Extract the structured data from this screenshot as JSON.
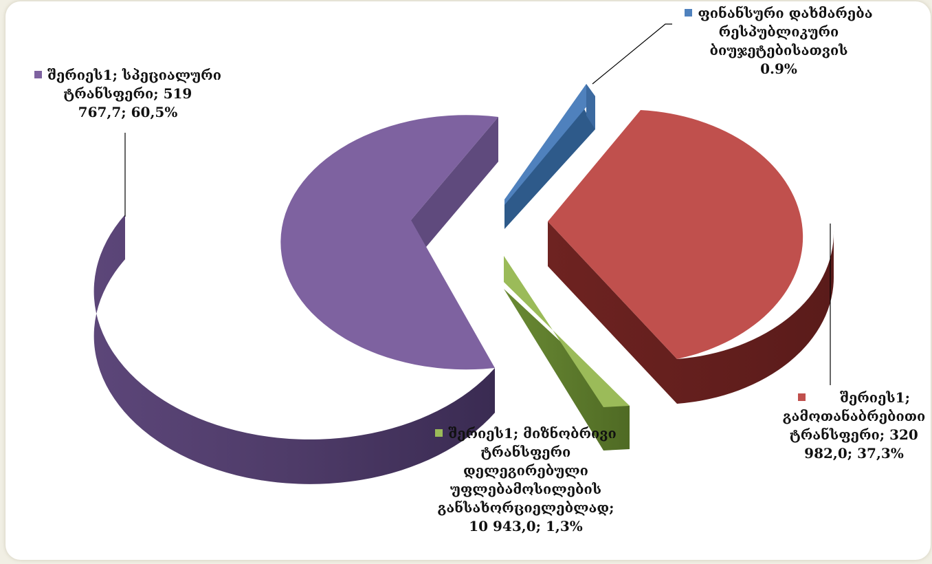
{
  "chart_data": {
    "type": "pie",
    "style": "3d-exploded",
    "colors": {
      "special": "#7e62a0",
      "equalization": "#c0504d",
      "targeted": "#9bbb59",
      "financial": "#4f81bd"
    },
    "slices": [
      {
        "key": "special",
        "series": "შერიეს1",
        "category": "სპეციალური ტრანსფერი",
        "value": 519767.7,
        "percent": 60.5,
        "label_lines": [
          "შერიეს1;  სპეციალური",
          "ტრანსფერი;  519",
          "767,7;  60,5%"
        ]
      },
      {
        "key": "equalization",
        "series": "შერიეს1",
        "category": "გამოთანაბრებითი ტრანსფერი",
        "value": 320982.0,
        "percent": 37.3,
        "label_lines": [
          "შერიეს1;",
          "გამოთანაბრებითი",
          "ტრანსფერი;  320",
          "982,0;  37,3%"
        ]
      },
      {
        "key": "targeted",
        "series": "შერიეს1",
        "category": "მიზნობრივი ტრანსფერი დელეგირებული უფლებამოსილების განსახორციელებლად",
        "value": 10943.0,
        "percent": 1.3,
        "label_lines": [
          "შერიეს1;  მიზნობრივი",
          "ტრანსფერი",
          "დელეგირებული",
          "უფლებამოსილების",
          "განსახორციელებლად;",
          "10  943,0;  1,3%"
        ]
      },
      {
        "key": "financial",
        "series": "",
        "category": "ფინანსური დახმარება რესპუბლიკური ბიუჯეტებისათვის",
        "value": null,
        "percent": 0.9,
        "label_lines": [
          "ფინანსური  დახმარება",
          "რესპუბლიკური",
          "ბიუჯეტებისათვის",
          "0.9%"
        ]
      }
    ]
  }
}
